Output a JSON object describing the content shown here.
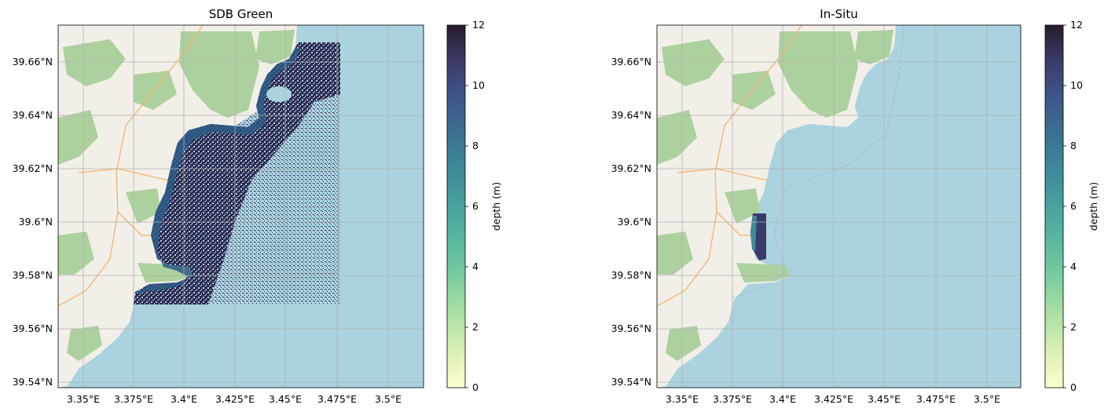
{
  "chart_data": [
    {
      "type": "heatmap",
      "title": "SDB Green",
      "x_ticks": [
        "3.35°E",
        "3.375°E",
        "3.4°E",
        "3.425°E",
        "3.45°E",
        "3.475°E",
        "3.5°E"
      ],
      "x_tick_values": [
        3.35,
        3.375,
        3.4,
        3.425,
        3.45,
        3.475,
        3.5
      ],
      "y_ticks": [
        "39.54°N",
        "39.56°N",
        "39.58°N",
        "39.6°N",
        "39.62°N",
        "39.64°N",
        "39.66°N"
      ],
      "y_tick_values": [
        39.54,
        39.56,
        39.58,
        39.6,
        39.62,
        39.64,
        39.66
      ],
      "xlim": [
        3.3395,
        3.5145
      ],
      "ylim": [
        39.5385,
        39.6735
      ],
      "grid": true,
      "raster_extent": {
        "lon": [
          3.373,
          3.476
        ],
        "lat": [
          39.569,
          39.667
        ]
      },
      "colorbar": {
        "label": "depth (m)",
        "min": 0,
        "max": 12,
        "ticks": [
          "0",
          "2",
          "4",
          "6",
          "8",
          "10",
          "12"
        ],
        "colormap": "deep"
      }
    },
    {
      "type": "heatmap",
      "title": "In-Situ",
      "x_ticks": [
        "3.35°E",
        "3.375°E",
        "3.4°E",
        "3.425°E",
        "3.45°E",
        "3.475°E",
        "3.5°E"
      ],
      "x_tick_values": [
        3.35,
        3.375,
        3.4,
        3.425,
        3.45,
        3.475,
        3.5
      ],
      "y_ticks": [
        "39.54°N",
        "39.56°N",
        "39.58°N",
        "39.6°N",
        "39.62°N",
        "39.64°N",
        "39.66°N"
      ],
      "y_tick_values": [
        39.54,
        39.56,
        39.58,
        39.6,
        39.62,
        39.64,
        39.66
      ],
      "xlim": [
        3.3395,
        3.5145
      ],
      "ylim": [
        39.5385,
        39.6735
      ],
      "grid": true,
      "raster_extent": {
        "lon": [
          3.385,
          3.389
        ],
        "lat": [
          39.586,
          39.603
        ]
      },
      "colorbar": {
        "label": "depth (m)",
        "min": 0,
        "max": 12,
        "ticks": [
          "0",
          "2",
          "4",
          "6",
          "8",
          "10",
          "12"
        ],
        "colormap": "deep"
      }
    }
  ],
  "colors": {
    "sea": "#aad3df",
    "land": "#f2efe9",
    "park": "#add19e",
    "grid": "#b0b0b0",
    "shallow": "#fdfece",
    "deep": "#281a2c"
  }
}
